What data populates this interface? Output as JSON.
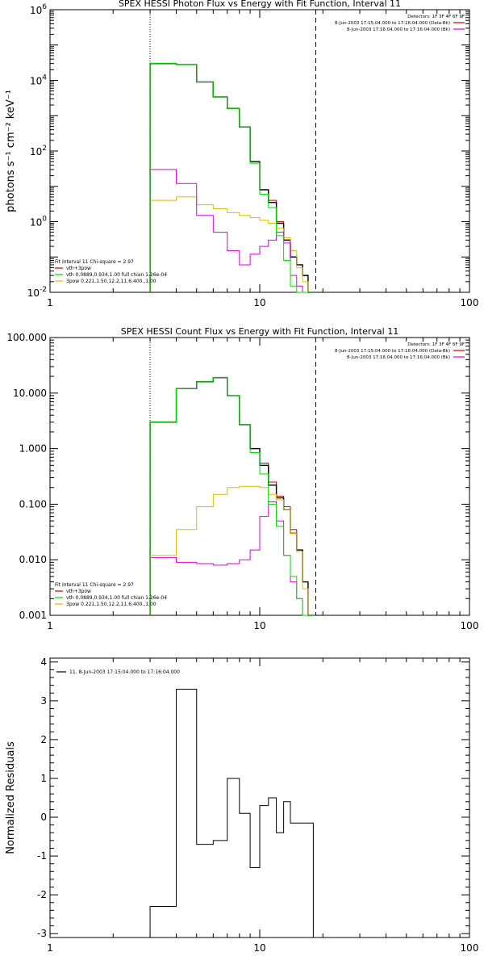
{
  "colors": {
    "total": "#000000",
    "data": "#cc0000",
    "thermal": "#00dd00",
    "nonthermal": "#ddbb00",
    "background": "#dd00dd",
    "residual": "#000000"
  },
  "chart_data": [
    {
      "type": "line",
      "title": "SPEX HESSI Photon Flux vs Energy with Fit Function, Interval 11",
      "xlabel": "",
      "ylabel": "photons s⁻¹ cm⁻² keV⁻¹",
      "xscale": "log",
      "yscale": "log",
      "xlim": [
        1,
        100
      ],
      "ylim": [
        0.01,
        1000000
      ],
      "x_ticks": [
        {
          "value": 1,
          "label": "1"
        },
        {
          "value": 10,
          "label": "10"
        },
        {
          "value": 100,
          "label": "100"
        }
      ],
      "y_ticks": [
        {
          "value": 0.01,
          "base": "10",
          "exp": "-2"
        },
        {
          "value": 1,
          "base": "10",
          "exp": "0"
        },
        {
          "value": 100,
          "base": "10",
          "exp": "2"
        },
        {
          "value": 10000,
          "base": "10",
          "exp": "4"
        },
        {
          "value": 1000000,
          "base": "10",
          "exp": "6"
        }
      ],
      "vlines": [
        {
          "x": 3,
          "style": "dotted"
        },
        {
          "x": 18.5,
          "style": "dashed"
        }
      ],
      "bin_edges": [
        3,
        4,
        5,
        6,
        7,
        8,
        9,
        10,
        11,
        12,
        13,
        14,
        15,
        16,
        17,
        18
      ],
      "series": [
        {
          "key": "total",
          "values": [
            30000,
            28000,
            9000,
            3400,
            1600,
            480,
            50,
            8,
            3.5,
            0.9,
            0.3,
            0.1,
            0.06,
            0.03,
            0.01
          ]
        },
        {
          "key": "data",
          "values": [
            30000,
            28000,
            9000,
            3400,
            1600,
            480,
            50,
            8,
            4,
            1,
            0.3,
            0.1,
            0.06,
            0.03,
            0.01
          ]
        },
        {
          "key": "thermal",
          "values": [
            30000,
            28000,
            9000,
            3400,
            1600,
            480,
            45,
            6,
            2.5,
            0.4,
            0.08,
            0.015,
            0.01,
            0.01,
            0.01
          ]
        },
        {
          "key": "nonthermal",
          "values": [
            4,
            5,
            3,
            2.3,
            1.8,
            1.5,
            1.3,
            1.1,
            0.9,
            0.65,
            0.35,
            0.15,
            0.05,
            0.02,
            0.01
          ]
        },
        {
          "key": "background",
          "values": [
            30,
            12,
            1.5,
            0.5,
            0.15,
            0.06,
            0.12,
            0.2,
            0.3,
            0.5,
            0.25,
            0.03,
            0.015,
            0.01,
            0.01
          ]
        }
      ],
      "info_header": "Detectors: 1F 3F 4F 6F 9F",
      "info_lines": [
        {
          "key": "data",
          "text": "8-Jun-2003 17:15:04.000 to 17:16:04.000 (Data-Bk)"
        },
        {
          "key": "background",
          "text": "8-Jun-2003 17:16:04.000 to 17:16:04.000 (Bk)"
        }
      ],
      "fit_header": "Fit Interval 11    Chi-square = 2.97",
      "fit_lines": [
        {
          "key": "data",
          "text": "vth+3pow"
        },
        {
          "key": "thermal",
          "text": "vth 0.0889,0.934,1.00   full chian 1.26e-04"
        },
        {
          "key": "nonthermal",
          "text": "3pow 0.221,1.50,12.2,11.6,400.,1.00"
        }
      ]
    },
    {
      "type": "line",
      "title": "SPEX HESSI Count Flux vs Energy with Fit Function, Interval 11",
      "xlabel": "",
      "ylabel": "",
      "xscale": "log",
      "yscale": "log",
      "xlim": [
        1,
        100
      ],
      "ylim": [
        0.001,
        100
      ],
      "x_ticks": [
        {
          "value": 1,
          "label": "1"
        },
        {
          "value": 10,
          "label": "10"
        },
        {
          "value": 100,
          "label": "100"
        }
      ],
      "y_ticks": [
        {
          "value": 0.001,
          "label": "0.001"
        },
        {
          "value": 0.01,
          "label": "0.010"
        },
        {
          "value": 0.1,
          "label": "0.100"
        },
        {
          "value": 1,
          "label": "1.000"
        },
        {
          "value": 10,
          "label": "10.000"
        },
        {
          "value": 100,
          "label": "100.000"
        }
      ],
      "vlines": [
        {
          "x": 3,
          "style": "dotted"
        },
        {
          "x": 18.5,
          "style": "dashed"
        }
      ],
      "bin_edges": [
        3,
        4,
        5,
        6,
        7,
        8,
        9,
        10,
        11,
        12,
        13,
        14,
        15,
        16,
        17,
        18
      ],
      "series": [
        {
          "key": "total",
          "values": [
            3,
            12,
            16,
            19,
            9,
            2.7,
            1,
            0.5,
            0.22,
            0.13,
            0.08,
            0.03,
            0.015,
            0.004,
            0.001
          ]
        },
        {
          "key": "data",
          "values": [
            3,
            12,
            16,
            19,
            9,
            2.7,
            1,
            0.55,
            0.25,
            0.14,
            0.09,
            0.035,
            0.015,
            0.004,
            0.001
          ]
        },
        {
          "key": "thermal",
          "values": [
            3,
            12,
            16,
            19,
            9,
            2.7,
            0.85,
            0.35,
            0.1,
            0.04,
            0.012,
            0.005,
            0.002,
            0.001,
            0.001
          ]
        },
        {
          "key": "nonthermal",
          "values": [
            0.012,
            0.035,
            0.09,
            0.15,
            0.2,
            0.21,
            0.21,
            0.2,
            0.15,
            0.12,
            0.08,
            0.03,
            0.014,
            0.003,
            0.001
          ]
        },
        {
          "key": "background",
          "values": [
            0.011,
            0.009,
            0.0085,
            0.008,
            0.0085,
            0.01,
            0.015,
            0.06,
            0.11,
            0.05,
            0.012,
            0.004,
            0.002,
            0.001,
            0.001
          ]
        }
      ],
      "info_header": "Detectors: 1F 3F 4F 6F 9F",
      "info_lines": [
        {
          "key": "data",
          "text": "8-Jun-2003 17:15:04.000 to 17:16:04.000 (Data-Bk)"
        },
        {
          "key": "background",
          "text": "8-Jun-2003 17:16:04.000 to 17:16:04.000 (Bk)"
        }
      ],
      "fit_header": "Fit Interval 11    Chi-square = 2.97",
      "fit_lines": [
        {
          "key": "data",
          "text": "vth+3pow"
        },
        {
          "key": "thermal",
          "text": "vth 0.0889,0.934,1.00   full chian 1.26e-04"
        },
        {
          "key": "nonthermal",
          "text": "3pow 0.221,1.50,12.2,11.6,400.,1.00"
        }
      ]
    },
    {
      "type": "line",
      "title": "",
      "xlabel": "",
      "ylabel": "Normalized Residuals",
      "xscale": "log",
      "yscale": "linear",
      "xlim": [
        1,
        100
      ],
      "ylim": [
        -3.1,
        4.1
      ],
      "x_ticks": [
        {
          "value": 1,
          "label": "1"
        },
        {
          "value": 10,
          "label": "10"
        },
        {
          "value": 100,
          "label": "100"
        }
      ],
      "y_ticks": [
        {
          "value": -3,
          "label": "-3"
        },
        {
          "value": -2,
          "label": "-2"
        },
        {
          "value": -1,
          "label": "-1"
        },
        {
          "value": 0,
          "label": "0"
        },
        {
          "value": 1,
          "label": "1"
        },
        {
          "value": 2,
          "label": "2"
        },
        {
          "value": 3,
          "label": "3"
        },
        {
          "value": 4,
          "label": "4"
        }
      ],
      "vlines": [],
      "bin_edges": [
        3,
        4,
        5,
        6,
        7,
        8,
        9,
        10,
        11,
        12,
        13,
        14,
        15,
        16,
        17,
        18
      ],
      "series": [
        {
          "key": "residual",
          "values": [
            -2.3,
            3.3,
            -0.7,
            -0.6,
            1.0,
            0.1,
            -1.3,
            0.3,
            0.5,
            -0.4,
            0.4,
            -0.15,
            -0.15,
            -0.15,
            -0.15
          ]
        }
      ],
      "legend_text": "11.  8-Jun-2003 17:15:04.000 to 17:16:04.000"
    }
  ]
}
